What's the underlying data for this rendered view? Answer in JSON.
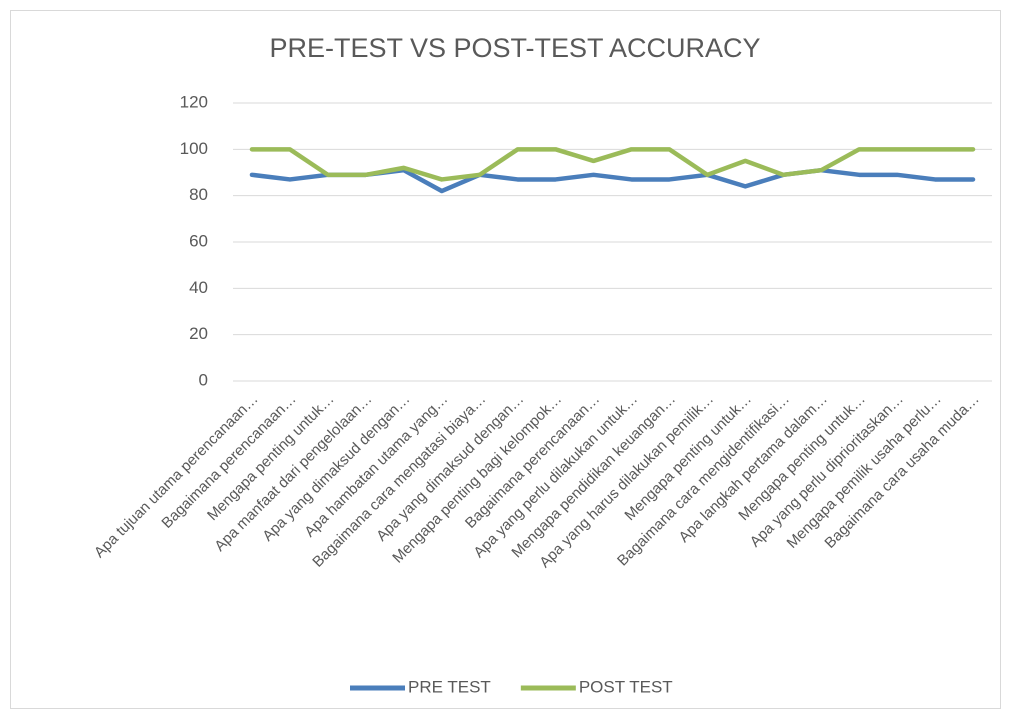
{
  "chart_data": {
    "type": "line",
    "title": "PRE-TEST VS POST-TEST ACCURACY",
    "categories": [
      "Apa tujuan utama perencanaan…",
      "Bagaimana perencanaan…",
      "Mengapa penting untuk…",
      "Apa manfaat dari pengelolaan…",
      "Apa yang dimaksud dengan…",
      "Apa hambatan utama yang…",
      "Bagaimana cara mengatasi biaya…",
      "Apa yang dimaksud dengan…",
      "Mengapa penting bagi kelompok…",
      "Bagaimana perencanaan…",
      "Apa yang perlu dilakukan untuk…",
      "Mengapa pendidikan keuangan…",
      "Apa yang harus dilakukan pemilik…",
      "Mengapa penting untuk…",
      "Bagaimana cara mengidentifikasi…",
      "Apa langkah pertama dalam…",
      "Mengapa penting untuk…",
      "Apa yang perlu diprioritaskan…",
      "Mengapa pemilik usaha perlu…",
      "Bagaimana cara usaha muda…"
    ],
    "series": [
      {
        "name": "PRE TEST",
        "color": "#4a7ebb",
        "values": [
          89,
          87,
          89,
          89,
          91,
          82,
          89,
          87,
          87,
          89,
          87,
          87,
          89,
          84,
          89,
          91,
          89,
          89,
          87,
          87
        ]
      },
      {
        "name": "POST TEST",
        "color": "#9bbb59",
        "values": [
          100,
          100,
          89,
          89,
          92,
          87,
          89,
          100,
          100,
          95,
          100,
          100,
          89,
          95,
          89,
          91,
          100,
          100,
          100,
          100
        ]
      }
    ],
    "ylim": [
      0,
      120
    ],
    "yticks": [
      0,
      20,
      40,
      60,
      80,
      100,
      120
    ],
    "grid": true,
    "legend": "bottom"
  }
}
